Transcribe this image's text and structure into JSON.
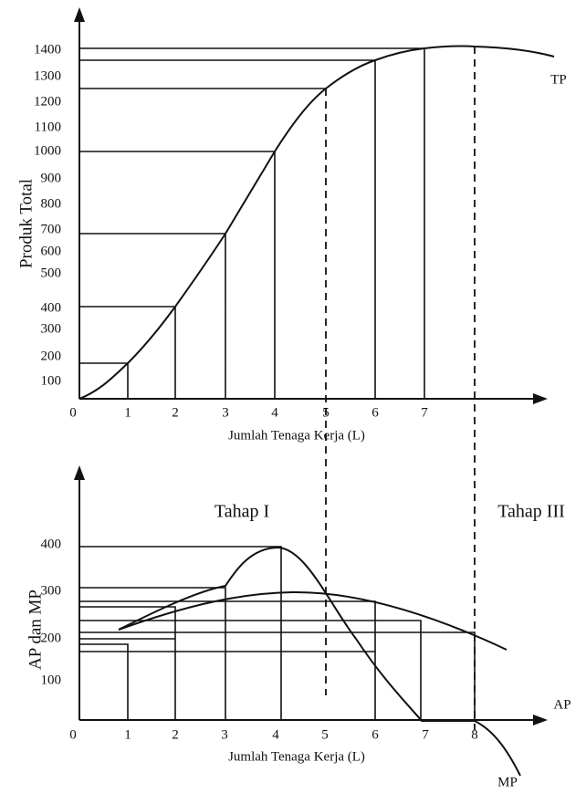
{
  "top": {
    "y_label": "Produk Total",
    "x_label": "Jumlah Tenaga Kerja (L)",
    "curve_label": "TP",
    "y_ticks": [
      "100",
      "200",
      "300",
      "400",
      "500",
      "600",
      "700",
      "800",
      "900",
      "1000",
      "1100",
      "1200",
      "1300",
      "1400"
    ],
    "x_ticks": [
      "0",
      "1",
      "2",
      "3",
      "4",
      "5",
      "6",
      "7"
    ]
  },
  "bottom": {
    "y_label": "AP dan MP",
    "x_label": "Jumlah Tenaga Kerja (L)",
    "stage_1": "Tahap I",
    "stage_3": "Tahap III",
    "curve_labels": [
      "AP",
      "MP"
    ],
    "y_ticks": [
      "100",
      "200",
      "300",
      "400"
    ],
    "x_ticks": [
      "0",
      "1",
      "2",
      "3",
      "4",
      "5",
      "6",
      "7",
      "8"
    ]
  }
}
